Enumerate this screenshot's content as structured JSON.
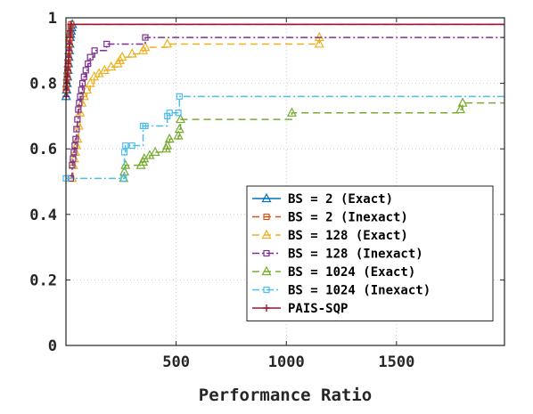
{
  "chart_data": {
    "type": "line",
    "title": "",
    "xlabel": "Performance Ratio",
    "ylabel": "",
    "xlim": [
      0,
      1990
    ],
    "ylim": [
      0,
      1
    ],
    "xticks": [
      500,
      1000,
      1500
    ],
    "yticks": [
      0,
      0.2,
      0.4,
      0.6,
      0.8,
      1
    ],
    "xtick_labels": [
      "500",
      "1000",
      "1500"
    ],
    "ytick_labels": [
      "0",
      "0.2",
      "0.4",
      "0.6",
      "0.8",
      "1"
    ],
    "grid": true,
    "legend_position": "bottom-right",
    "series": [
      {
        "name": "BS = 2 (Exact)",
        "color": "#0072BD",
        "dash": "solid",
        "marker": "triangle",
        "x": [
          1,
          3,
          5,
          7,
          9,
          11,
          13,
          15,
          17,
          19,
          21,
          23,
          26,
          29,
          1990
        ],
        "y": [
          0.76,
          0.78,
          0.8,
          0.82,
          0.84,
          0.86,
          0.88,
          0.9,
          0.92,
          0.94,
          0.95,
          0.96,
          0.97,
          0.98,
          0.98
        ]
      },
      {
        "name": "BS = 2 (Inexact)",
        "color": "#D95319",
        "dash": "dash",
        "marker": "square",
        "x": [
          1,
          3,
          5,
          7,
          9,
          11,
          13,
          15,
          17,
          19,
          21,
          24,
          1990
        ],
        "y": [
          0.78,
          0.8,
          0.82,
          0.84,
          0.86,
          0.88,
          0.9,
          0.92,
          0.94,
          0.95,
          0.97,
          0.98,
          0.98
        ]
      },
      {
        "name": "BS = 128 (Exact)",
        "color": "#EDB120",
        "dash": "dash",
        "marker": "triangle",
        "x": [
          28,
          33,
          38,
          43,
          48,
          53,
          58,
          64,
          72,
          82,
          95,
          110,
          128,
          150,
          175,
          205,
          235,
          245,
          255,
          300,
          350,
          360,
          460,
          1150,
          1150
        ],
        "y": [
          0.51,
          0.55,
          0.57,
          0.59,
          0.61,
          0.63,
          0.67,
          0.71,
          0.74,
          0.76,
          0.78,
          0.8,
          0.82,
          0.83,
          0.84,
          0.85,
          0.86,
          0.87,
          0.88,
          0.89,
          0.9,
          0.91,
          0.92,
          0.92,
          0.94
        ]
      },
      {
        "name": "BS = 128 (Inexact)",
        "color": "#7E2F8E",
        "dash": "dashdot",
        "marker": "square",
        "x": [
          22,
          28,
          32,
          36,
          40,
          44,
          48,
          52,
          56,
          60,
          65,
          70,
          75,
          82,
          90,
          100,
          110,
          130,
          185,
          360,
          1990
        ],
        "y": [
          0.51,
          0.55,
          0.57,
          0.59,
          0.61,
          0.63,
          0.66,
          0.69,
          0.72,
          0.74,
          0.76,
          0.78,
          0.8,
          0.82,
          0.84,
          0.86,
          0.88,
          0.9,
          0.92,
          0.94,
          0.94
        ]
      },
      {
        "name": "BS = 1024 (Exact)",
        "color": "#77AC30",
        "dash": "dash",
        "marker": "triangle",
        "x": [
          262,
          265,
          270,
          340,
          350,
          355,
          380,
          405,
          455,
          460,
          470,
          510,
          515,
          520,
          1025,
          1790,
          1800,
          1990
        ],
        "y": [
          0.51,
          0.53,
          0.55,
          0.55,
          0.56,
          0.57,
          0.58,
          0.59,
          0.6,
          0.61,
          0.63,
          0.64,
          0.66,
          0.69,
          0.71,
          0.72,
          0.74,
          0.74
        ]
      },
      {
        "name": "BS = 1024 (Inexact)",
        "color": "#4DBEEE",
        "dash": "dashdot",
        "marker": "square",
        "x": [
          0,
          262,
          265,
          270,
          300,
          350,
          360,
          460,
          470,
          510,
          515,
          1990
        ],
        "y": [
          0.51,
          0.51,
          0.59,
          0.61,
          0.61,
          0.67,
          0.67,
          0.7,
          0.71,
          0.71,
          0.76,
          0.76
        ]
      },
      {
        "name": "PAIS-SQP",
        "color": "#A2142F",
        "dash": "solid",
        "marker": "plus",
        "x": [
          1,
          2,
          4,
          6,
          8,
          10,
          12,
          14,
          16,
          18,
          20,
          22,
          1990
        ],
        "y": [
          0.76,
          0.78,
          0.8,
          0.82,
          0.84,
          0.86,
          0.88,
          0.9,
          0.92,
          0.94,
          0.96,
          0.98,
          0.98
        ]
      }
    ]
  }
}
